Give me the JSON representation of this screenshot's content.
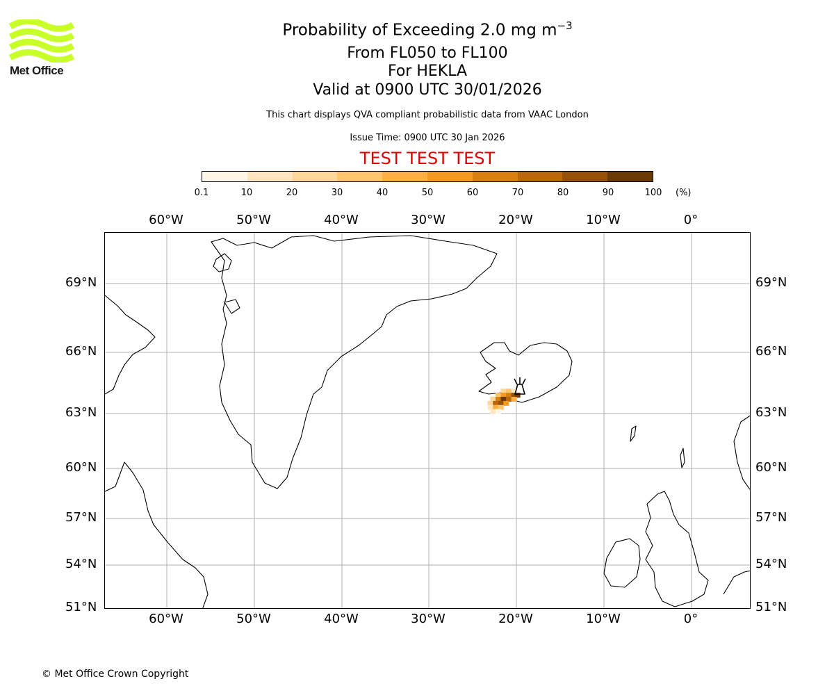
{
  "logo": {
    "text": "Met Office",
    "accent": "#c8ff29"
  },
  "header": {
    "title": "Probability of Exceeding 2.0 mg m",
    "title_sup": "−3",
    "levels": "From FL050 to FL100",
    "volcano": "For HEKLA",
    "valid": "Valid at 0900 UTC 30/01/2026",
    "description": "This chart displays QVA compliant probabilistic data from VAAC London",
    "issue_time": "Issue Time: 0900 UTC 30 Jan 2026",
    "test_banner": "TEST TEST TEST"
  },
  "colorbar": {
    "ticks": [
      "0.1",
      "10",
      "20",
      "30",
      "40",
      "50",
      "60",
      "70",
      "80",
      "90",
      "100"
    ],
    "unit": "(%)",
    "colors": [
      "#fff6e8",
      "#ffe5c0",
      "#ffd69a",
      "#ffc46e",
      "#fdb040",
      "#f49a1f",
      "#d8800f",
      "#b8680b",
      "#955108",
      "#6a3a06"
    ]
  },
  "map": {
    "lon_labels_top": [
      "60°W",
      "50°W",
      "40°W",
      "30°W",
      "20°W",
      "10°W",
      "0°"
    ],
    "lon_labels_bottom": [
      "60°W",
      "50°W",
      "40°W",
      "30°W",
      "20°W",
      "10°W",
      "0°"
    ],
    "lat_labels_left": [
      "69°N",
      "66°N",
      "63°N",
      "60°N",
      "57°N",
      "54°N",
      "51°N"
    ],
    "lat_labels_right": [
      "69°N",
      "66°N",
      "63°N",
      "60°N",
      "57°N",
      "54°N",
      "51°N"
    ],
    "plume_cells": [
      {
        "lon": -21.5,
        "lat": 64.1,
        "prob": 20
      },
      {
        "lon": -20.9,
        "lat": 64.1,
        "prob": 35
      },
      {
        "lon": -20.3,
        "lat": 64.1,
        "prob": 15
      },
      {
        "lon": -22.1,
        "lat": 63.9,
        "prob": 30
      },
      {
        "lon": -21.5,
        "lat": 63.9,
        "prob": 55
      },
      {
        "lon": -20.9,
        "lat": 63.9,
        "prob": 65
      },
      {
        "lon": -20.3,
        "lat": 63.9,
        "prob": 85
      },
      {
        "lon": -19.9,
        "lat": 63.9,
        "prob": 92
      },
      {
        "lon": -22.7,
        "lat": 63.7,
        "prob": 25
      },
      {
        "lon": -22.1,
        "lat": 63.7,
        "prob": 60
      },
      {
        "lon": -21.5,
        "lat": 63.7,
        "prob": 90
      },
      {
        "lon": -20.9,
        "lat": 63.7,
        "prob": 78
      },
      {
        "lon": -20.3,
        "lat": 63.7,
        "prob": 45
      },
      {
        "lon": -23.0,
        "lat": 63.5,
        "prob": 20
      },
      {
        "lon": -22.4,
        "lat": 63.5,
        "prob": 70
      },
      {
        "lon": -21.8,
        "lat": 63.5,
        "prob": 88
      },
      {
        "lon": -21.2,
        "lat": 63.5,
        "prob": 50
      },
      {
        "lon": -23.0,
        "lat": 63.3,
        "prob": 15
      },
      {
        "lon": -22.4,
        "lat": 63.3,
        "prob": 45
      },
      {
        "lon": -21.8,
        "lat": 63.3,
        "prob": 30
      },
      {
        "lon": -22.7,
        "lat": 63.1,
        "prob": 12
      },
      {
        "lon": -22.1,
        "lat": 63.1,
        "prob": 8
      }
    ]
  },
  "footer": {
    "copyright": "© Met Office Crown Copyright"
  }
}
